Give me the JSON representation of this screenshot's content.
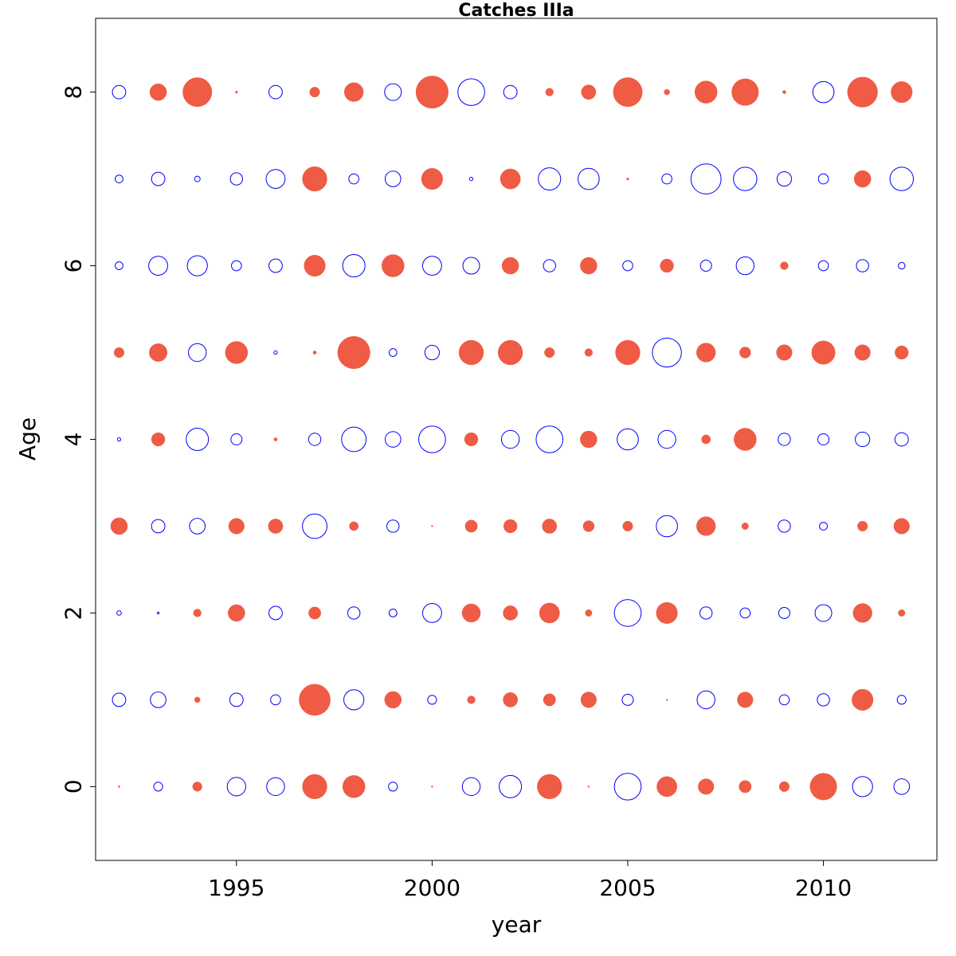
{
  "chart_data": {
    "type": "scatter",
    "subtype": "bubble",
    "title": "Catches IIIa",
    "xlabel": "year",
    "ylabel": "Age",
    "xlim": [
      1991.4,
      2012.9
    ],
    "ylim": [
      -0.85,
      8.85
    ],
    "x_ticks": [
      1995,
      2000,
      2005,
      2010
    ],
    "y_ticks": [
      0,
      2,
      4,
      6,
      8
    ],
    "grid": false,
    "legend": "none",
    "colors": {
      "positive": "#ef5b44",
      "negative": "#0000ff"
    },
    "years": [
      1992,
      1993,
      1994,
      1995,
      1996,
      1997,
      1998,
      1999,
      2000,
      2001,
      2002,
      2003,
      2004,
      2005,
      2006,
      2007,
      2008,
      2009,
      2010,
      2011,
      2012
    ],
    "ages": [
      0,
      1,
      2,
      3,
      4,
      5,
      6,
      7,
      8
    ],
    "residuals": {
      "0": [
        0.08,
        -0.4,
        0.42,
        -0.83,
        -0.8,
        1.1,
        1.0,
        -0.4,
        0.03,
        -0.8,
        -1.0,
        1.1,
        0.05,
        -1.2,
        0.9,
        0.7,
        0.55,
        0.45,
        1.2,
        -0.9,
        -0.7
      ],
      "1": [
        -0.6,
        -0.7,
        0.25,
        -0.6,
        -0.45,
        1.4,
        -0.9,
        0.75,
        -0.4,
        0.35,
        0.65,
        0.55,
        0.7,
        -0.5,
        0.03,
        -0.8,
        0.7,
        -0.45,
        -0.55,
        0.95,
        -0.4
      ],
      "2": [
        -0.2,
        -0.08,
        0.35,
        0.75,
        -0.6,
        0.55,
        -0.55,
        -0.35,
        -0.85,
        0.82,
        0.65,
        0.9,
        0.3,
        -1.2,
        0.95,
        -0.55,
        -0.45,
        -0.5,
        -0.75,
        0.85,
        0.3
      ],
      "3": [
        0.75,
        -0.6,
        -0.7,
        0.7,
        0.65,
        -1.1,
        0.4,
        -0.55,
        0.03,
        0.55,
        0.6,
        0.65,
        0.5,
        0.45,
        -0.95,
        0.85,
        0.3,
        -0.55,
        -0.35,
        0.45,
        0.7
      ],
      "4": [
        -0.15,
        0.6,
        -1.0,
        -0.5,
        0.15,
        -0.55,
        -1.1,
        -0.7,
        -1.2,
        0.6,
        -0.8,
        -1.2,
        0.75,
        -0.95,
        -0.8,
        0.4,
        1.0,
        -0.55,
        -0.5,
        -0.65,
        -0.6
      ],
      "5": [
        0.45,
        0.8,
        -0.8,
        1.0,
        -0.15,
        0.15,
        1.45,
        -0.35,
        -0.65,
        1.1,
        1.1,
        0.45,
        0.35,
        1.1,
        -1.3,
        0.85,
        0.5,
        0.7,
        1.05,
        0.7,
        0.6
      ],
      "6": [
        -0.35,
        -0.85,
        -0.9,
        -0.45,
        -0.6,
        0.95,
        -1.0,
        1.0,
        -0.85,
        -0.75,
        0.75,
        -0.55,
        0.75,
        -0.45,
        0.6,
        -0.5,
        -0.8,
        0.35,
        -0.45,
        -0.55,
        -0.3
      ],
      "7": [
        -0.35,
        -0.6,
        -0.25,
        -0.55,
        -0.85,
        1.1,
        -0.45,
        -0.7,
        0.95,
        -0.15,
        0.9,
        -1.0,
        -0.95,
        0.1,
        -0.45,
        -1.35,
        -1.05,
        -0.65,
        -0.45,
        0.75,
        -1.05
      ],
      "8": [
        -0.6,
        0.75,
        1.3,
        0.1,
        -0.6,
        0.45,
        0.85,
        -0.75,
        1.45,
        -1.2,
        -0.6,
        0.35,
        0.65,
        1.3,
        0.25,
        1.0,
        1.2,
        0.15,
        -0.95,
        1.35,
        0.95
      ]
    }
  }
}
